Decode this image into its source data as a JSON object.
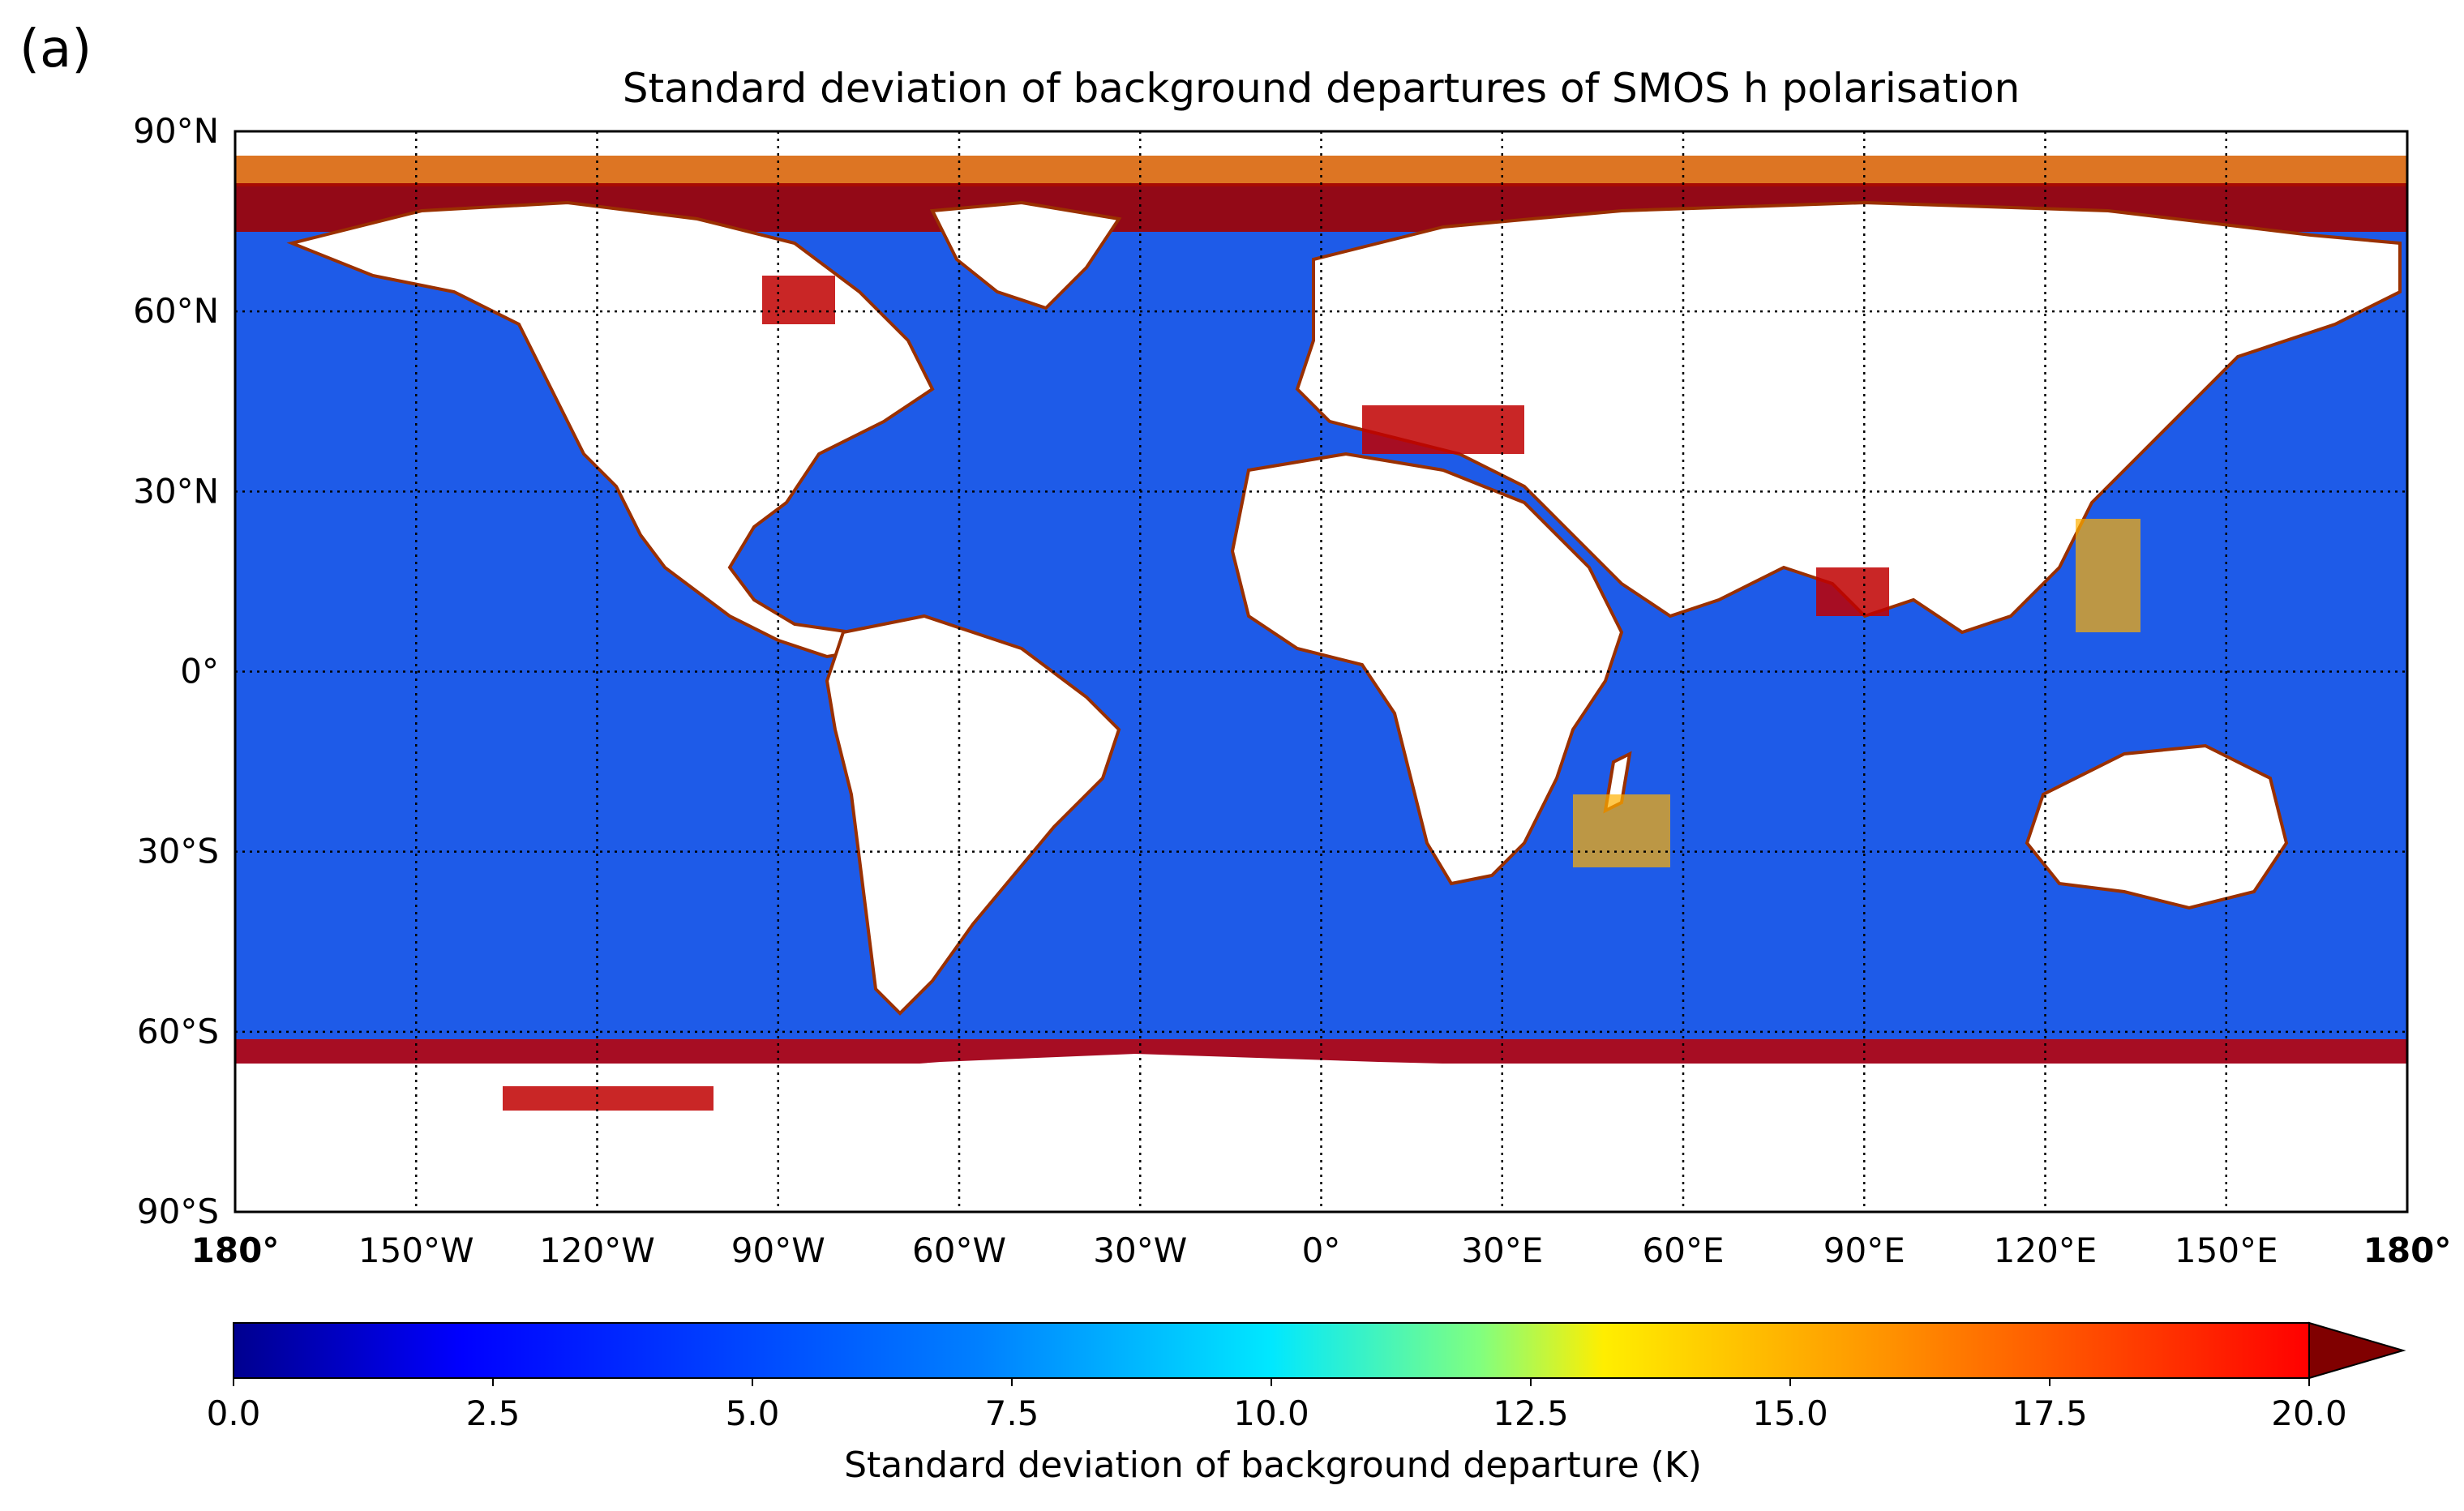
{
  "panel_label": "(a)",
  "title": "Standard deviation of background departures of SMOS h polarisation",
  "map": {
    "lat_ticks": [
      "90°N",
      "60°N",
      "30°N",
      "0°",
      "30°S",
      "60°S",
      "90°S"
    ],
    "lon_ticks": [
      "180°",
      "150°W",
      "120°W",
      "90°W",
      "60°W",
      "30°W",
      "0°",
      "30°E",
      "60°E",
      "90°E",
      "120°E",
      "150°E",
      "180°"
    ],
    "lat_range": [
      -90,
      90
    ],
    "lon_range": [
      -180,
      180
    ],
    "gridlines": "dotted",
    "ocean_color": "#1E5BE8",
    "land_color": "#ffffff"
  },
  "colorbar": {
    "label": "Standard deviation of background departure (K)",
    "ticks": [
      "0.0",
      "2.5",
      "5.0",
      "7.5",
      "10.0",
      "12.5",
      "15.0",
      "17.5",
      "20.0"
    ],
    "range": [
      0,
      20
    ],
    "extend": "max",
    "colormap": "jet",
    "colors": [
      "#00008F",
      "#0000FF",
      "#0080FF",
      "#00FFFF",
      "#80FF80",
      "#FFFF00",
      "#FF8000",
      "#FF0000",
      "#800000"
    ]
  }
}
